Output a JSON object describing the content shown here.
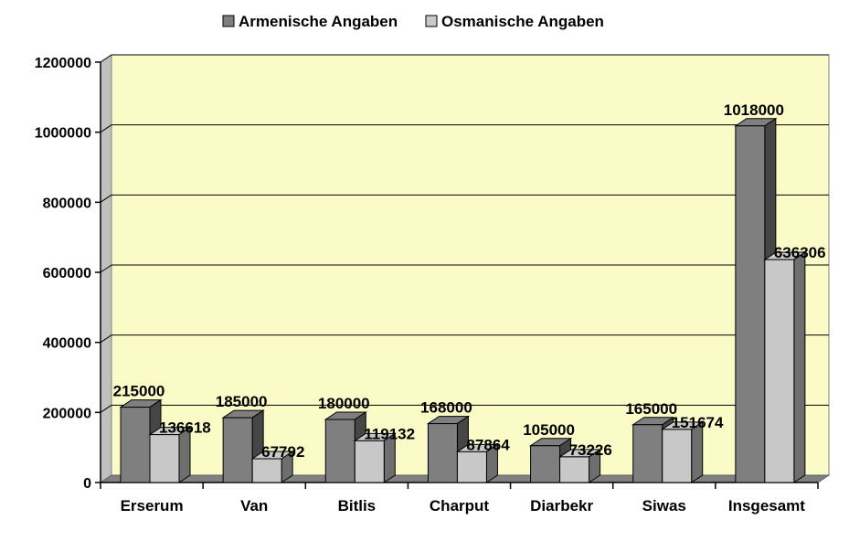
{
  "chart_data": {
    "type": "bar",
    "title": "",
    "xlabel": "",
    "ylabel": "",
    "categories": [
      "Erserum",
      "Van",
      "Bitlis",
      "Charput",
      "Diarbekr",
      "Siwas",
      "Insgesamt"
    ],
    "series": [
      {
        "name": "Armenische Angaben",
        "values": [
          215000,
          185000,
          180000,
          168000,
          105000,
          165000,
          1018000
        ],
        "color": "#7f7f7f"
      },
      {
        "name": "Osmanische Angaben",
        "values": [
          136618,
          67792,
          119132,
          87864,
          73226,
          151674,
          636306
        ],
        "color": "#c8c8c8"
      }
    ],
    "ylim": [
      0,
      1200000
    ],
    "yticks": [
      0,
      200000,
      400000,
      600000,
      800000,
      1000000,
      1200000
    ],
    "y_tick_labels": [
      "0",
      "200000",
      "400000",
      "600000",
      "800000",
      "1000000",
      "1200000"
    ],
    "grid": true,
    "legend": "top-center",
    "plot_background": "#fbfbc8",
    "three_d": true
  }
}
